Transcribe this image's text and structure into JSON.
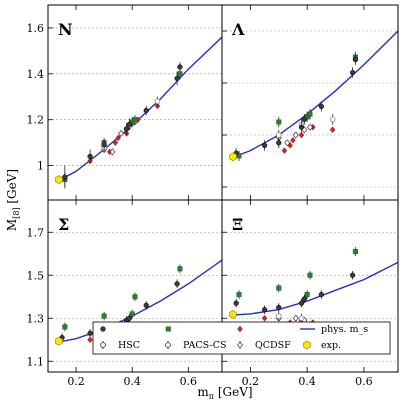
{
  "chart_data": {
    "type": "scatter",
    "xlabel": "m_π [GeV]",
    "ylabel": "M_[8] [GeV]",
    "xlim": [
      0.1,
      0.72
    ],
    "x_ticks": [
      0.2,
      0.4,
      0.6
    ],
    "x_tick_labels": [
      "0.2",
      "0.4",
      "0.6"
    ],
    "layout": "2x2 panels sharing axes",
    "legend": {
      "placement": "bottom-right panel, lower area",
      "entries": [
        "HSC",
        "PACS-CS",
        "QCDSF",
        "phys. m_s",
        "exp."
      ]
    },
    "colors": {
      "HSC": "#3a3a3a",
      "HSC_light": "#8a8a8a",
      "PACS-CS": "#2e7d32",
      "QCDSF": "#c62828",
      "phys_ms_curve": "#1f2fd1",
      "exp": "#ffe600",
      "grid": "#999999"
    },
    "panels": [
      {
        "label": "N",
        "ylim": [
          0.85,
          1.7
        ],
        "yticks": [
          1.0,
          1.2,
          1.4,
          1.6
        ],
        "y_tick_labels": [
          "1",
          "1.2",
          "1.4",
          "1.6"
        ],
        "curve_x": [
          0.139,
          0.2,
          0.3,
          0.4,
          0.5,
          0.6,
          0.72
        ],
        "curve_y": [
          0.935,
          0.975,
          1.07,
          1.175,
          1.29,
          1.42,
          1.56
        ],
        "hsc": [
          [
            0.16,
            0.95,
            0.05
          ],
          [
            0.25,
            1.04,
            0.03
          ],
          [
            0.3,
            1.09,
            0.03
          ],
          [
            0.38,
            1.16,
            0.025
          ],
          [
            0.39,
            1.18,
            0.025
          ],
          [
            0.45,
            1.24,
            0.02
          ],
          [
            0.56,
            1.38,
            0.03
          ],
          [
            0.57,
            1.43,
            0.02
          ]
        ],
        "hsc_light": [
          [
            0.3,
            1.08,
            0.02
          ],
          [
            0.38,
            1.16,
            0.02
          ],
          [
            0.49,
            1.28,
            0.02
          ]
        ],
        "pacs": [
          [
            0.16,
            0.94,
            0.03
          ],
          [
            0.3,
            1.1,
            0.02
          ],
          [
            0.4,
            1.19,
            0.02
          ],
          [
            0.41,
            1.2,
            0.02
          ],
          [
            0.57,
            1.4,
            0.02
          ]
        ],
        "qcdsf_open": [
          [
            0.3,
            1.07
          ],
          [
            0.33,
            1.06
          ],
          [
            0.36,
            1.14
          ],
          [
            0.39,
            1.17
          ],
          [
            0.41,
            1.19
          ]
        ],
        "qcdsf_filled": [
          [
            0.25,
            1.02
          ],
          [
            0.32,
            1.06
          ],
          [
            0.34,
            1.1
          ],
          [
            0.35,
            1.12
          ],
          [
            0.38,
            1.14
          ],
          [
            0.42,
            1.2
          ],
          [
            0.49,
            1.26
          ]
        ],
        "exp": [
          0.139,
          0.939
        ]
      },
      {
        "label": "Λ",
        "ylim": [
          0.95,
          1.7
        ],
        "yticks": [
          1.0,
          1.2,
          1.4,
          1.6
        ],
        "y_tick_labels": [
          "1",
          "1.2",
          "1.4",
          "1.6"
        ],
        "curve_x": [
          0.139,
          0.2,
          0.3,
          0.4,
          0.5,
          0.6,
          0.72
        ],
        "curve_y": [
          1.115,
          1.14,
          1.2,
          1.28,
          1.37,
          1.47,
          1.6
        ],
        "hsc": [
          [
            0.15,
            1.13,
            0.02
          ],
          [
            0.25,
            1.16,
            0.02
          ],
          [
            0.3,
            1.17,
            0.02
          ],
          [
            0.38,
            1.23,
            0.02
          ],
          [
            0.39,
            1.26,
            0.02
          ],
          [
            0.45,
            1.31,
            0.02
          ],
          [
            0.56,
            1.44,
            0.02
          ],
          [
            0.57,
            1.49,
            0.02
          ]
        ],
        "hsc_light": [
          [
            0.3,
            1.2,
            0.02
          ],
          [
            0.38,
            1.24,
            0.02
          ],
          [
            0.49,
            1.26,
            0.02
          ]
        ],
        "pacs": [
          [
            0.16,
            1.12,
            0.02
          ],
          [
            0.3,
            1.25,
            0.02
          ],
          [
            0.4,
            1.27,
            0.02
          ],
          [
            0.41,
            1.28,
            0.02
          ],
          [
            0.57,
            1.5,
            0.02
          ]
        ],
        "qcdsf_open": [
          [
            0.3,
            1.19
          ],
          [
            0.33,
            1.17
          ],
          [
            0.36,
            1.2
          ],
          [
            0.39,
            1.22
          ],
          [
            0.41,
            1.23
          ]
        ],
        "qcdsf_filled": [
          [
            0.25,
            1.16
          ],
          [
            0.32,
            1.14
          ],
          [
            0.34,
            1.16
          ],
          [
            0.35,
            1.18
          ],
          [
            0.38,
            1.2
          ],
          [
            0.42,
            1.23
          ],
          [
            0.49,
            1.22
          ]
        ],
        "exp": [
          0.139,
          1.116
        ]
      },
      {
        "label": "Σ",
        "ylim": [
          1.05,
          1.85
        ],
        "yticks": [
          1.1,
          1.3,
          1.5,
          1.7
        ],
        "y_tick_labels": [
          "1.1",
          "1.3",
          "1.5",
          "1.7"
        ],
        "curve_x": [
          0.139,
          0.2,
          0.3,
          0.4,
          0.5,
          0.6,
          0.72
        ],
        "curve_y": [
          1.19,
          1.205,
          1.25,
          1.31,
          1.38,
          1.46,
          1.57
        ],
        "hsc": [
          [
            0.15,
            1.21,
            0.02
          ],
          [
            0.25,
            1.23,
            0.02
          ],
          [
            0.3,
            1.25,
            0.02
          ],
          [
            0.38,
            1.29,
            0.02
          ],
          [
            0.39,
            1.3,
            0.02
          ],
          [
            0.45,
            1.36,
            0.02
          ],
          [
            0.56,
            1.46,
            0.02
          ]
        ],
        "hsc_light": [
          [
            0.3,
            1.24,
            0.02
          ],
          [
            0.38,
            1.26,
            0.02
          ],
          [
            0.49,
            1.24,
            0.02
          ]
        ],
        "pacs": [
          [
            0.16,
            1.26,
            0.02
          ],
          [
            0.3,
            1.31,
            0.02
          ],
          [
            0.4,
            1.32,
            0.02
          ],
          [
            0.41,
            1.4,
            0.02
          ],
          [
            0.57,
            1.53,
            0.02
          ]
        ],
        "qcdsf_open": [
          [
            0.3,
            1.23
          ],
          [
            0.33,
            1.21
          ],
          [
            0.36,
            1.24
          ],
          [
            0.39,
            1.25
          ],
          [
            0.41,
            1.26
          ]
        ],
        "qcdsf_filled": [
          [
            0.25,
            1.2
          ],
          [
            0.32,
            1.18
          ],
          [
            0.34,
            1.21
          ],
          [
            0.35,
            1.22
          ],
          [
            0.38,
            1.24
          ],
          [
            0.42,
            1.23
          ],
          [
            0.49,
            1.2
          ]
        ],
        "exp": [
          0.139,
          1.193
        ]
      },
      {
        "label": "Ξ",
        "ylim": [
          1.05,
          1.85
        ],
        "yticks": [
          1.1,
          1.3,
          1.5,
          1.7
        ],
        "y_tick_labels": [
          "1.1",
          "1.3",
          "1.5",
          "1.7"
        ],
        "curve_x": [
          0.139,
          0.2,
          0.3,
          0.4,
          0.5,
          0.6,
          0.72
        ],
        "curve_y": [
          1.315,
          1.32,
          1.34,
          1.38,
          1.43,
          1.48,
          1.56
        ],
        "hsc": [
          [
            0.15,
            1.37,
            0.02
          ],
          [
            0.25,
            1.34,
            0.02
          ],
          [
            0.3,
            1.35,
            0.02
          ],
          [
            0.38,
            1.37,
            0.02
          ],
          [
            0.39,
            1.39,
            0.02
          ],
          [
            0.45,
            1.41,
            0.02
          ],
          [
            0.56,
            1.5,
            0.02
          ]
        ],
        "hsc_light": [
          [
            0.3,
            1.31,
            0.02
          ],
          [
            0.38,
            1.3,
            0.02
          ],
          [
            0.49,
            1.22,
            0.02
          ]
        ],
        "pacs": [
          [
            0.16,
            1.41,
            0.02
          ],
          [
            0.3,
            1.44,
            0.02
          ],
          [
            0.4,
            1.41,
            0.02
          ],
          [
            0.41,
            1.5,
            0.02
          ],
          [
            0.57,
            1.61,
            0.02
          ]
        ],
        "qcdsf_open": [
          [
            0.3,
            1.3
          ],
          [
            0.33,
            1.27
          ],
          [
            0.36,
            1.3
          ],
          [
            0.39,
            1.29
          ],
          [
            0.41,
            1.27
          ],
          [
            0.45,
            1.25
          ]
        ],
        "qcdsf_filled": [
          [
            0.25,
            1.3
          ],
          [
            0.3,
            1.27
          ],
          [
            0.32,
            1.25
          ],
          [
            0.34,
            1.28
          ],
          [
            0.35,
            1.26
          ],
          [
            0.38,
            1.29
          ],
          [
            0.42,
            1.28
          ],
          [
            0.49,
            1.19
          ]
        ],
        "exp": [
          0.139,
          1.318
        ]
      }
    ]
  }
}
